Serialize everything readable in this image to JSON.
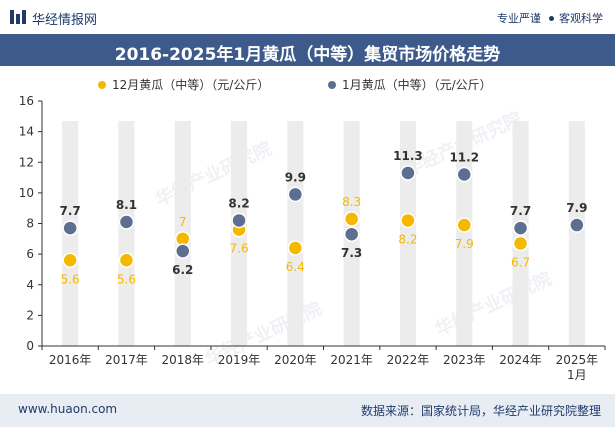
{
  "header": {
    "brand": "华经情报网",
    "slogan_left": "专业严谨",
    "slogan_right": "客观科学"
  },
  "colors": {
    "series_dec": "#f5b800",
    "series_jan": "#5c6f91",
    "title_bg": "#3d5a8a",
    "footer_bg": "#e8edf4",
    "column_band": "#ececec"
  },
  "watermark": "华经产业研究院",
  "chart_data": {
    "type": "scatter",
    "title": "2016-2025年1月黄瓜（中等）集贸市场价格走势",
    "categories": [
      "2016年",
      "2017年",
      "2018年",
      "2019年",
      "2020年",
      "2021年",
      "2022年",
      "2023年",
      "2024年",
      "2025年\n1月"
    ],
    "ylim": [
      0,
      16
    ],
    "yticks": [
      0,
      2,
      4,
      6,
      8,
      10,
      12,
      14,
      16
    ],
    "grid": false,
    "legend_position": "top",
    "series": [
      {
        "name": "12月黄瓜（中等）（元/公斤）",
        "values": [
          5.6,
          5.6,
          7,
          7.6,
          6.4,
          8.3,
          8.2,
          7.9,
          6.7,
          null
        ],
        "label_color": "#f5b800"
      },
      {
        "name": "1月黄瓜（中等）（元/公斤）",
        "values": [
          7.7,
          8.1,
          6.2,
          8.2,
          9.9,
          7.3,
          11.3,
          11.2,
          7.7,
          7.9
        ],
        "label_color": "#333333"
      }
    ]
  },
  "footer": {
    "url": "www.huaon.com",
    "source": "数据来源：国家统计局，华经产业研究院整理"
  }
}
